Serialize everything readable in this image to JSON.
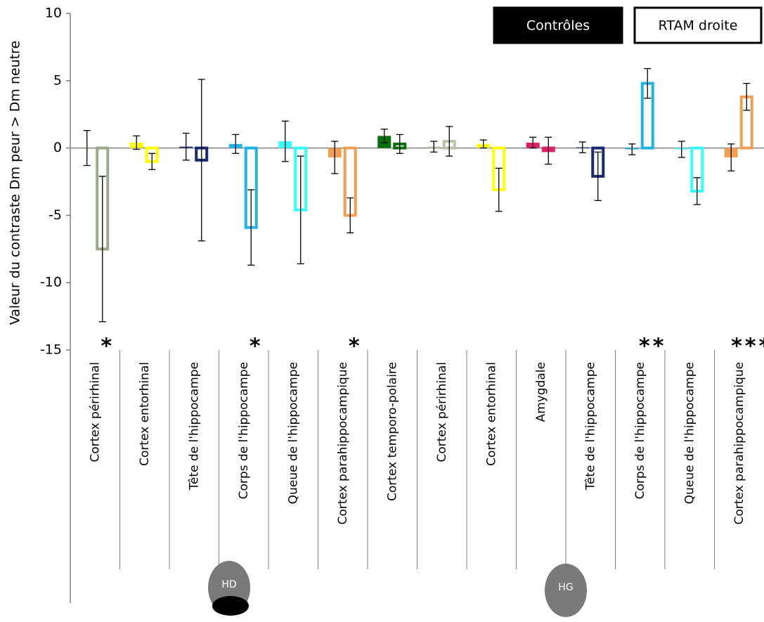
{
  "chart_data": {
    "type": "bar",
    "y_label": "Valeur du contraste Dm peur > Dm neutre",
    "categories": [
      "Cortex périrhinal",
      "Cortex entorhinal",
      "Tête de l'hippocampe",
      "Corps de l'hippocampe",
      "Queue de l'hippocampe",
      "Cortex parahippocampique",
      "Cortex temporo-polaire",
      "Cortex périrhinal",
      "Cortex entorhinal",
      "Amygdale",
      "Tête de l'hippocampe",
      "Corps de l'hippocampe",
      "Queue de l'hippocampe",
      "Cortex parahippocampique"
    ],
    "category_colors": [
      "#9aab8a",
      "#ffff00",
      "#1a2a6e",
      "#1eb4e8",
      "#33ffff",
      "#f0a050",
      "#0a6e0a",
      "#b8c4a4",
      "#ffff00",
      "#e0206a",
      "#1a2a6e",
      "#1eb4e8",
      "#33ffff",
      "#f0a050"
    ],
    "series": [
      {
        "name": "Contrôles",
        "color": "#000000",
        "values": [
          0,
          0.4,
          0.1,
          0.3,
          0.5,
          -0.7,
          0.9,
          0.1,
          0.3,
          0.4,
          0.05,
          -0.1,
          -0.1,
          -0.7
        ],
        "errors": [
          1.3,
          0.5,
          1.0,
          0.7,
          1.5,
          1.2,
          0.5,
          0.4,
          0.3,
          0.4,
          0.4,
          0.4,
          0.6,
          1.0
        ]
      },
      {
        "name": "RTAM droite",
        "color": "#ffffff",
        "values": [
          -7.5,
          -1.0,
          -0.9,
          -5.9,
          -4.6,
          -5.0,
          0.3,
          0.5,
          -3.1,
          -0.2,
          -2.1,
          4.8,
          -3.2,
          3.8
        ],
        "errors": [
          5.4,
          0.6,
          6.0,
          2.8,
          4.0,
          1.3,
          0.7,
          1.1,
          1.6,
          1.0,
          1.8,
          1.1,
          1.0,
          1.0
        ]
      }
    ],
    "significance": [
      "*",
      null,
      null,
      "*",
      null,
      "*",
      null,
      null,
      null,
      null,
      null,
      "**",
      null,
      "***"
    ],
    "hemisphere_labels": [
      "HD",
      "HG"
    ],
    "ylim": [
      -15,
      10
    ],
    "yticks": [
      -15,
      -10,
      -5,
      0,
      5,
      10
    ]
  }
}
